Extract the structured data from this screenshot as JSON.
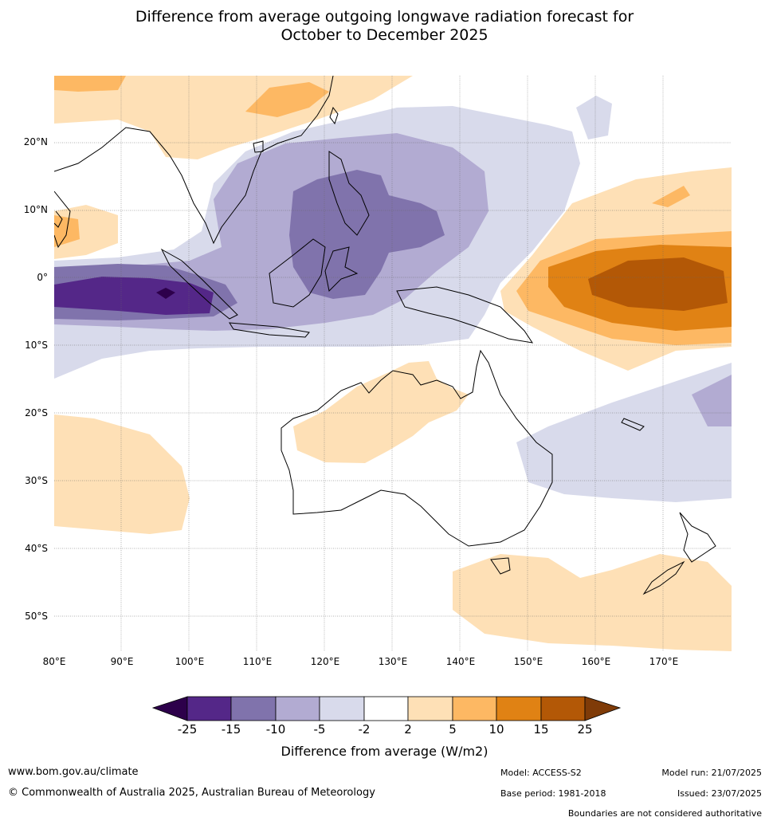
{
  "title": {
    "line1": "Difference from average outgoing longwave radiation forecast for",
    "line2": "October to December 2025"
  },
  "map": {
    "lat_labels": [
      "20°N",
      "10°N",
      "0°",
      "10°S",
      "20°S",
      "30°S",
      "40°S",
      "50°S"
    ],
    "lon_labels": [
      "80°E",
      "90°E",
      "100°E",
      "110°E",
      "120°E",
      "130°E",
      "140°E",
      "150°E",
      "160°E",
      "170°E"
    ]
  },
  "legend": {
    "ticks": [
      "-25",
      "-15",
      "-10",
      "-5",
      "-2",
      "2",
      "5",
      "10",
      "15",
      "25"
    ],
    "label": "Difference from average (W/m2)",
    "colors": {
      "below_min": "#2d004b",
      "-25_-15": "#542788",
      "-15_-10": "#8073ac",
      "-10_-5": "#b2abd2",
      "-5_-2": "#d8daeb",
      "-2_2": "#ffffff",
      "2_5": "#fee0b6",
      "5_10": "#fdb863",
      "10_15": "#e08214",
      "15_25": "#b35806",
      "above_max": "#7f3b08"
    }
  },
  "footer": {
    "website": "www.bom.gov.au/climate",
    "copyright": "© Commonwealth of Australia 2025, Australian Bureau of Meteorology",
    "model": "Model: ACCESS-S2",
    "base_period": "Base period: 1981-2018",
    "model_run": "Model run: 21/07/2025",
    "issued": "Issued: 23/07/2025",
    "disclaimer": "Boundaries are not considered authoritative"
  }
}
